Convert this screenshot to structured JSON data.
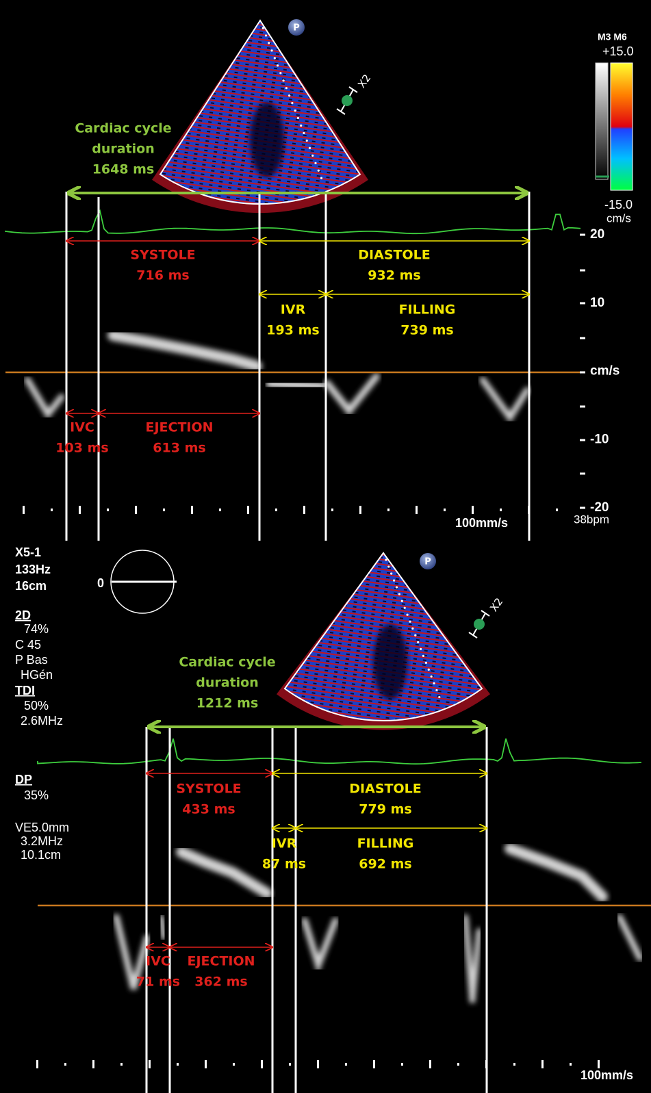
{
  "top": {
    "colorbar": {
      "modes": "M3 M6",
      "max": "+15.0",
      "min": "-15.0",
      "unit": "cm/s"
    },
    "probe_icon": "P",
    "zoom": "X2",
    "cycle": [
      "Cardiac cycle",
      "duration",
      "1648 ms"
    ],
    "phases": [
      {
        "name": "SYSTOLE",
        "duration": "716 ms"
      },
      {
        "name": "DIASTOLE",
        "duration": "932 ms"
      },
      {
        "name": "IVR",
        "duration": "193 ms"
      },
      {
        "name": "FILLING",
        "duration": "739 ms"
      },
      {
        "name": "IVC",
        "duration": "103 ms"
      },
      {
        "name": "EJECTION",
        "duration": "613 ms"
      }
    ],
    "scale": [
      "20",
      "10",
      "cm/s",
      "-10",
      "-20"
    ],
    "sweep": "100mm/s",
    "heart_rate": "38bpm"
  },
  "bottom": {
    "settings": {
      "probe": "X5-1",
      "frame_rate": "133Hz",
      "depth": "16cm",
      "angle": "0",
      "lines": [
        "2D",
        "74%",
        "C 45",
        "P Bas",
        "HGén",
        "TDI",
        "50%",
        "2.6MHz",
        "DP",
        "35%",
        "VE5.0mm",
        "3.2MHz",
        "10.1cm"
      ]
    },
    "probe_icon": "P",
    "zoom": "X2",
    "cycle": [
      "Cardiac cycle",
      "duration",
      "1212 ms"
    ],
    "phases": [
      {
        "name": "SYSTOLE",
        "duration": "433 ms"
      },
      {
        "name": "DIASTOLE",
        "duration": "779 ms"
      },
      {
        "name": "IVR",
        "duration": "87 ms"
      },
      {
        "name": "FILLING",
        "duration": "692 ms"
      },
      {
        "name": "IVC",
        "duration": "71 ms"
      },
      {
        "name": "EJECTION",
        "duration": "362 ms"
      }
    ],
    "sweep": "100mm/s"
  }
}
